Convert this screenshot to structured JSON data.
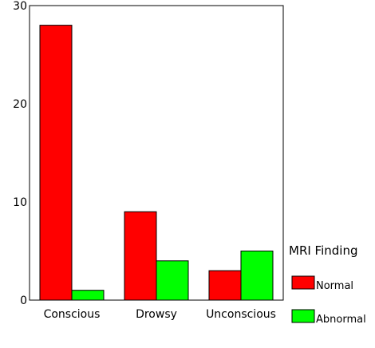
{
  "chart_data": {
    "type": "bar",
    "categories": [
      "Conscious",
      "Drowsy",
      "Unconscious"
    ],
    "series": [
      {
        "name": "Normal",
        "values": [
          28,
          9,
          3
        ],
        "color": "#ff0000"
      },
      {
        "name": "Abnormal",
        "values": [
          1,
          4,
          5
        ],
        "color": "#00ff00"
      }
    ],
    "ylim": [
      0,
      30
    ],
    "yticks": [
      "0",
      "10",
      "20",
      "30"
    ],
    "grid": false,
    "legend": {
      "title": "MRI Finding",
      "placement": "right"
    }
  }
}
